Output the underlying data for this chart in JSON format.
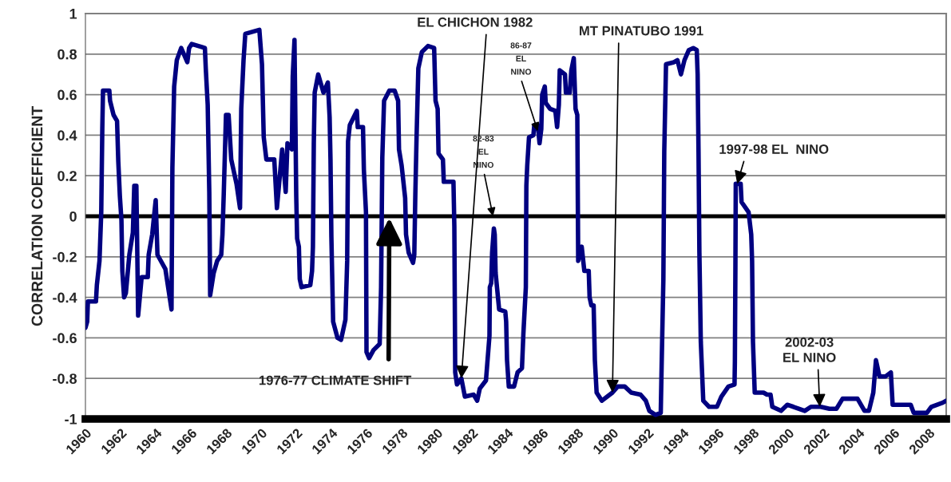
{
  "chart_data": {
    "type": "line",
    "ylabel": "CORRELATION COEFFICIENT",
    "xlim": [
      1960,
      2009
    ],
    "xticks": [
      1960,
      1962,
      1964,
      1966,
      1968,
      1970,
      1972,
      1974,
      1976,
      1978,
      1980,
      1982,
      1984,
      1986,
      1988,
      1990,
      1992,
      1994,
      1996,
      1998,
      2000,
      2002,
      2004,
      2006,
      2008
    ],
    "ylim": [
      -1,
      1
    ],
    "yticks": [
      -1,
      -0.8,
      -0.6,
      -0.4,
      -0.2,
      0,
      0.2,
      0.4,
      0.6,
      0.8,
      1
    ],
    "grid": "y",
    "marker": "none",
    "line_style": "solid",
    "ref_lines": [
      {
        "axis": "y",
        "value": 0,
        "color": "#000000"
      }
    ],
    "annotations": [
      {
        "text": "EL CHICHON 1982",
        "x": 1981.4,
        "y": -0.8
      },
      {
        "text": "MT PINATUBO 1991",
        "x": 1990.0,
        "y": -0.87
      },
      {
        "text": "86-87\nEL\nNINO",
        "x": 1985.75,
        "y": 0.42
      },
      {
        "text": "82-83\nEL\nNINO",
        "x": 1983.2,
        "y": 0.0
      },
      {
        "text": "1997-98 EL  NINO",
        "x": 1997.1,
        "y": 0.16
      },
      {
        "text": "2002-03\nEL NINO",
        "x": 2001.8,
        "y": -0.94
      },
      "1976-77 CLIMATE SHIFT"
    ],
    "series": [
      {
        "color": "#000080",
        "x": [
          1960.0,
          1960.1,
          1960.14,
          1960.6,
          1960.65,
          1960.8,
          1960.9,
          1960.96,
          1961.0,
          1961.36,
          1961.4,
          1961.6,
          1961.8,
          1961.87,
          1961.96,
          1962.05,
          1962.1,
          1962.2,
          1962.3,
          1962.5,
          1962.7,
          1962.78,
          1962.9,
          1963.0,
          1963.2,
          1963.55,
          1963.6,
          1963.8,
          1964.0,
          1964.1,
          1964.55,
          1964.9,
          1964.95,
          1965.05,
          1965.2,
          1965.45,
          1965.8,
          1965.9,
          1966.05,
          1966.8,
          1966.85,
          1966.96,
          1967.05,
          1967.1,
          1967.3,
          1967.5,
          1967.73,
          1967.8,
          1967.87,
          1968.0,
          1968.15,
          1968.3,
          1968.6,
          1968.8,
          1968.87,
          1969.0,
          1969.1,
          1969.9,
          1970.05,
          1970.15,
          1970.3,
          1970.75,
          1970.9,
          1971.2,
          1971.4,
          1971.5,
          1971.75,
          1971.8,
          1971.9,
          1972.0,
          1972.05,
          1972.15,
          1972.2,
          1972.3,
          1972.8,
          1972.9,
          1972.95,
          1973.0,
          1973.05,
          1973.25,
          1973.55,
          1973.8,
          1973.9,
          1973.95,
          1974.0,
          1974.1,
          1974.35,
          1974.55,
          1974.8,
          1974.9,
          1974.95,
          1975.05,
          1975.45,
          1975.5,
          1975.8,
          1975.85,
          1975.97,
          1976.0,
          1976.15,
          1976.4,
          1976.75,
          1976.83,
          1976.9,
          1977.0,
          1977.3,
          1977.6,
          1977.8,
          1977.85,
          1978.0,
          1978.2,
          1978.25,
          1978.4,
          1978.65,
          1978.72,
          1978.78,
          1978.85,
          1978.95,
          1979.15,
          1979.5,
          1979.85,
          1979.93,
          1980.05,
          1980.1,
          1980.35,
          1980.4,
          1980.95,
          1981.0,
          1981.05,
          1981.15,
          1981.4,
          1981.6,
          1982.1,
          1982.3,
          1982.45,
          1982.8,
          1982.9,
          1983.0,
          1983.02,
          1983.1,
          1983.15,
          1983.25,
          1983.3,
          1983.35,
          1983.55,
          1983.9,
          1983.95,
          1984.0,
          1984.1,
          1984.4,
          1984.6,
          1984.85,
          1984.93,
          1985.07,
          1985.1,
          1985.15,
          1985.25,
          1985.5,
          1985.55,
          1985.75,
          1985.85,
          1985.95,
          1986.0,
          1986.15,
          1986.2,
          1986.45,
          1986.75,
          1986.85,
          1986.95,
          1987.0,
          1987.3,
          1987.35,
          1987.57,
          1987.66,
          1987.8,
          1987.9,
          1988.0,
          1988.05,
          1988.25,
          1988.4,
          1988.65,
          1988.7,
          1988.8,
          1988.93,
          1989.0,
          1989.1,
          1989.4,
          1989.7,
          1990.0,
          1990.3,
          1990.7,
          1991.07,
          1991.6,
          1991.9,
          1992.1,
          1992.45,
          1992.75,
          1992.8,
          1992.9,
          1992.95,
          1993.05,
          1993.5,
          1993.7,
          1993.9,
          1994.1,
          1994.35,
          1994.6,
          1994.8,
          1994.85,
          1994.9,
          1994.95,
          1995.03,
          1995.17,
          1995.5,
          1995.95,
          1996.2,
          1996.6,
          1996.95,
          1996.97,
          1997.0,
          1997.02,
          1997.3,
          1997.35,
          1997.75,
          1997.9,
          1997.95,
          1998.0,
          1998.1,
          1998.6,
          1998.8,
          1999.0,
          1999.1,
          1999.6,
          1999.95,
          2000.3,
          2000.95,
          2001.3,
          2001.85,
          2002.35,
          2002.75,
          2003.1,
          2003.95,
          2004.35,
          2004.6,
          2004.85,
          2005.0,
          2005.2,
          2005.55,
          2005.85,
          2005.95,
          2006.98,
          2007.15,
          2007.9,
          2008.15,
          2008.8,
          2009.0
        ],
        "values": [
          -0.55,
          -0.52,
          -0.42,
          -0.42,
          -0.34,
          -0.22,
          0.02,
          0.43,
          0.62,
          0.62,
          0.57,
          0.5,
          0.47,
          0.27,
          0.1,
          -0.02,
          -0.27,
          -0.4,
          -0.38,
          -0.19,
          -0.08,
          0.15,
          0.15,
          -0.49,
          -0.3,
          -0.3,
          -0.19,
          -0.09,
          0.08,
          -0.19,
          -0.26,
          -0.46,
          0.24,
          0.64,
          0.77,
          0.83,
          0.76,
          0.83,
          0.85,
          0.83,
          0.73,
          0.55,
          0.12,
          -0.39,
          -0.28,
          -0.22,
          -0.19,
          -0.09,
          0.1,
          0.5,
          0.5,
          0.28,
          0.16,
          0.04,
          0.53,
          0.77,
          0.9,
          0.92,
          0.75,
          0.39,
          0.28,
          0.28,
          0.04,
          0.33,
          0.12,
          0.36,
          0.33,
          0.69,
          0.87,
          0.1,
          -0.11,
          -0.15,
          -0.31,
          -0.35,
          -0.34,
          -0.27,
          -0.15,
          0.36,
          0.61,
          0.7,
          0.61,
          0.66,
          0.49,
          0.28,
          -0.1,
          -0.52,
          -0.6,
          -0.61,
          -0.51,
          -0.22,
          0.37,
          0.45,
          0.52,
          0.44,
          0.44,
          0.23,
          0.02,
          -0.67,
          -0.7,
          -0.66,
          -0.63,
          -0.35,
          0.29,
          0.57,
          0.62,
          0.62,
          0.57,
          0.33,
          0.25,
          0.09,
          -0.09,
          -0.18,
          -0.23,
          -0.19,
          0.11,
          0.39,
          0.73,
          0.81,
          0.84,
          0.83,
          0.57,
          0.53,
          0.31,
          0.28,
          0.17,
          0.17,
          -0.05,
          -0.77,
          -0.83,
          -0.8,
          -0.89,
          -0.88,
          -0.91,
          -0.85,
          -0.81,
          -0.7,
          -0.59,
          -0.35,
          -0.33,
          -0.18,
          -0.06,
          -0.09,
          -0.28,
          -0.46,
          -0.47,
          -0.52,
          -0.71,
          -0.84,
          -0.84,
          -0.77,
          -0.75,
          -0.58,
          -0.35,
          0.15,
          0.25,
          0.39,
          0.4,
          0.45,
          0.45,
          0.36,
          0.43,
          0.6,
          0.64,
          0.56,
          0.53,
          0.52,
          0.44,
          0.55,
          0.72,
          0.7,
          0.61,
          0.61,
          0.72,
          0.78,
          0.53,
          0.5,
          -0.22,
          -0.15,
          -0.27,
          -0.27,
          -0.4,
          -0.44,
          -0.44,
          -0.71,
          -0.87,
          -0.91,
          -0.89,
          -0.87,
          -0.84,
          -0.84,
          -0.87,
          -0.88,
          -0.91,
          -0.96,
          -0.98,
          -0.97,
          -0.74,
          -0.31,
          0.32,
          0.75,
          0.76,
          0.77,
          0.7,
          0.77,
          0.82,
          0.83,
          0.82,
          0.7,
          0.32,
          -0.18,
          -0.62,
          -0.91,
          -0.94,
          -0.94,
          -0.89,
          -0.84,
          -0.83,
          -0.72,
          -0.25,
          0.16,
          0.16,
          0.07,
          0.02,
          -0.09,
          -0.22,
          -0.62,
          -0.87,
          -0.87,
          -0.88,
          -0.88,
          -0.94,
          -0.96,
          -0.93,
          -0.94,
          -0.96,
          -0.94,
          -0.94,
          -0.95,
          -0.95,
          -0.9,
          -0.9,
          -0.96,
          -0.96,
          -0.87,
          -0.71,
          -0.79,
          -0.79,
          -0.77,
          -0.93,
          -0.93,
          -0.97,
          -0.97,
          -0.94,
          -0.92,
          -0.91
        ]
      }
    ]
  }
}
